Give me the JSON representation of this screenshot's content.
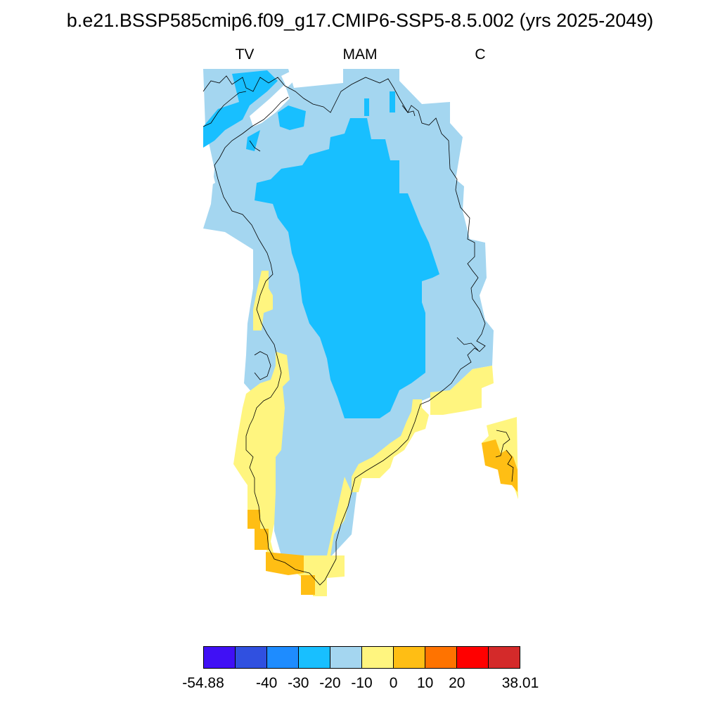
{
  "title": "b.e21.BSSP585cmip6.f09_g17.CMIP6-SSP5-8.5.002 (yrs 2025-2049)",
  "subtitles": {
    "left": "TV",
    "center": "MAM",
    "right": "C"
  },
  "legend": {
    "colors": [
      "#4010f5",
      "#3050e0",
      "#1e8cff",
      "#18bfff",
      "#a4d6f0",
      "#fff57f",
      "#ffbe14",
      "#ff7300",
      "#ff0000",
      "#d42a2a"
    ],
    "labels": [
      "-54.88",
      "-40",
      "-30",
      "-20",
      "-10",
      "0",
      "10",
      "20",
      "38.01"
    ]
  },
  "colors": {
    "deep_negative": "#18bfff",
    "mild_negative": "#a4d6f0",
    "mild_positive": "#fff57f",
    "positive": "#ffbe14",
    "coastline": "#000000"
  }
}
